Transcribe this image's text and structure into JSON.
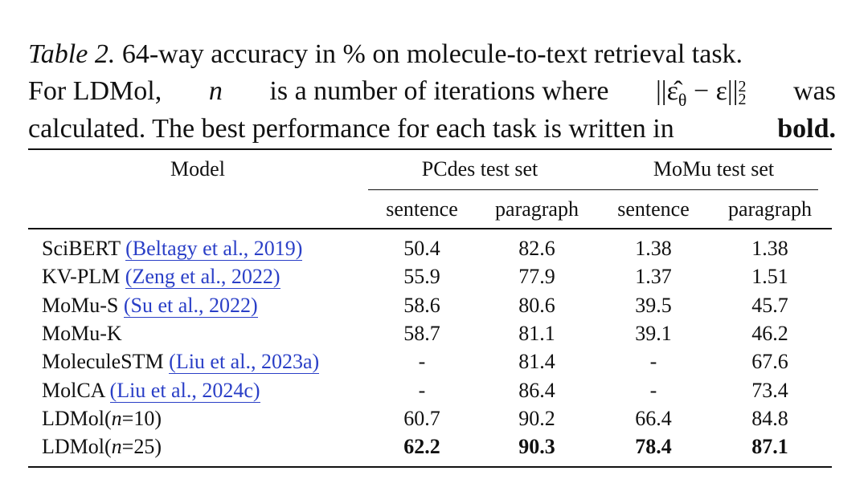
{
  "caption": {
    "label": "Table 2.",
    "line1": "64-way accuracy in % on molecule-to-text retrieval task.",
    "line2_start": "For LDMol,",
    "variable": "n",
    "line2_mid": "is a number of iterations where",
    "formula": {
      "base": "||ε̂",
      "sub1": "θ",
      "mid": "− ε||",
      "sup": "2",
      "sub2": "2"
    },
    "line2_end": "was",
    "line3": "calculated. The best performance for each task is written in",
    "line3_bold": "bold."
  },
  "table": {
    "header": {
      "model": "Model",
      "groups": [
        "PCdes test set",
        "MoMu test set"
      ],
      "subheaders": [
        "sentence",
        "paragraph",
        "sentence",
        "paragraph"
      ]
    },
    "rows": [
      {
        "model": "SciBERT",
        "citation": "(Beltagy et al., 2019)",
        "values": [
          "50.4",
          "82.6",
          "1.38",
          "1.38"
        ]
      },
      {
        "model": "KV-PLM",
        "citation": "(Zeng et al., 2022)",
        "values": [
          "55.9",
          "77.9",
          "1.37",
          "1.51"
        ]
      },
      {
        "model": "MoMu-S",
        "citation": "(Su et al., 2022)",
        "values": [
          "58.6",
          "80.6",
          "39.5",
          "45.7"
        ]
      },
      {
        "model": "MoMu-K",
        "values": [
          "58.7",
          "81.1",
          "39.1",
          "46.2"
        ]
      },
      {
        "model": "MoleculeSTM",
        "citation": "(Liu et al., 2023a)",
        "values": [
          "-",
          "81.4",
          "-",
          "67.6"
        ]
      },
      {
        "model": "MolCA",
        "citation": "(Liu et al., 2024c)",
        "values": [
          "-",
          "86.4",
          "-",
          "73.4"
        ]
      },
      {
        "model_parts": [
          "LDMol(",
          "n",
          "=10)"
        ],
        "values": [
          "60.7",
          "90.2",
          "66.4",
          "84.8"
        ]
      },
      {
        "model_parts": [
          "LDMol(",
          "n",
          "=25)"
        ],
        "values": [
          "62.2",
          "90.3",
          "78.4",
          "87.1"
        ],
        "bold": true
      }
    ]
  }
}
